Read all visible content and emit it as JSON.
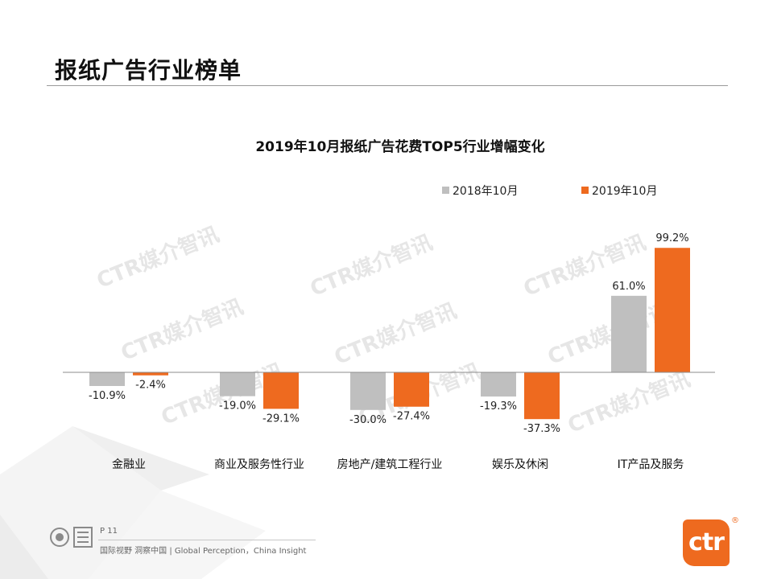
{
  "header": {
    "title": "报纸广告行业榜单"
  },
  "watermark_text": "CTR媒介智讯",
  "chart_data": {
    "type": "bar",
    "title": "2019年10月报纸广告花费TOP5行业增幅变化",
    "categories": [
      "金融业",
      "商业及服务性行业",
      "房地产/建筑工程行业",
      "娱乐及休闲",
      "IT产品及服务"
    ],
    "series": [
      {
        "name": "2018年10月",
        "color": "#bfbfbf",
        "values": [
          -10.9,
          -19.0,
          -30.0,
          -19.3,
          61.0
        ],
        "labels": [
          "-10.9%",
          "-19.0%",
          "-30.0%",
          "-19.3%",
          "61.0%"
        ]
      },
      {
        "name": "2019年10月",
        "color": "#ee6a1f",
        "values": [
          -2.4,
          -29.1,
          -27.4,
          -37.3,
          99.2
        ],
        "labels": [
          "-2.4%",
          "-29.1%",
          "-27.4%",
          "-37.3%",
          "99.2%"
        ]
      }
    ],
    "xlabel": "",
    "ylabel": "",
    "ylim": [
      -45,
      110
    ],
    "grid": false,
    "legend": "top-right"
  },
  "footer": {
    "page": "P 11",
    "slogan": "国际视野 洞察中国 | Global Perception，China Insight",
    "logo": "ctr",
    "registered_mark": "®"
  }
}
